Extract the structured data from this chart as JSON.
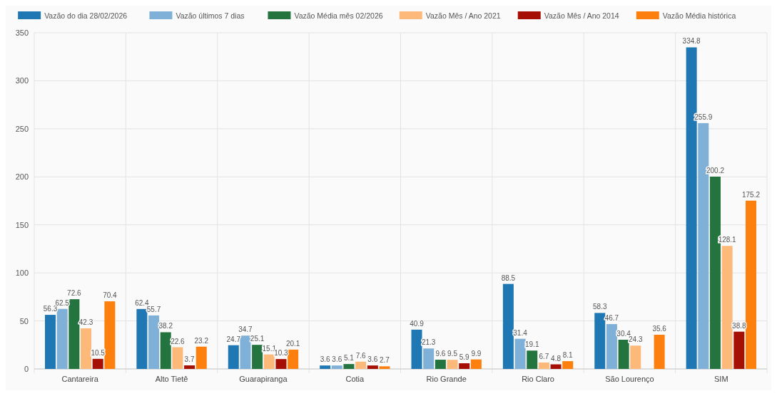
{
  "chart_data": {
    "type": "bar",
    "categories": [
      "Cantareira",
      "Alto Tietê",
      "Guarapiranga",
      "Cotia",
      "Rio Grande",
      "Rio Claro",
      "São Lourenço",
      "SIM"
    ],
    "series": [
      {
        "name": "Vazão do dia 28/02/2026",
        "color": "#1f77b4",
        "values": [
          56.3,
          62.4,
          24.7,
          3.6,
          40.9,
          88.5,
          58.3,
          334.8
        ]
      },
      {
        "name": "Vazão últimos 7 dias",
        "color": "#7fb1d8",
        "values": [
          62.5,
          55.7,
          34.7,
          3.6,
          21.3,
          31.4,
          46.7,
          255.9
        ]
      },
      {
        "name": "Vazão Média mês 02/2026",
        "color": "#23743e",
        "values": [
          72.6,
          38.2,
          25.1,
          5.1,
          9.6,
          19.1,
          30.4,
          200.2
        ]
      },
      {
        "name": "Vazão Mês / Ano 2021",
        "color": "#fdb97a",
        "values": [
          42.3,
          22.6,
          15.1,
          7.6,
          9.5,
          6.7,
          24.3,
          128.1
        ]
      },
      {
        "name": "Vazão Mês / Ano 2014",
        "color": "#a50f04",
        "values": [
          10.5,
          3.7,
          10.3,
          3.6,
          5.9,
          4.8,
          null,
          38.8
        ]
      },
      {
        "name": "Vazão Média histórica",
        "color": "#fd7f0e",
        "values": [
          70.4,
          23.2,
          20.1,
          2.7,
          9.9,
          8.1,
          35.6,
          175.2
        ]
      }
    ],
    "ylim": [
      0,
      350
    ],
    "yticks": [
      0,
      50,
      100,
      150,
      200,
      250,
      300,
      350
    ],
    "grid": true,
    "legend": "top",
    "data_labels": true
  }
}
